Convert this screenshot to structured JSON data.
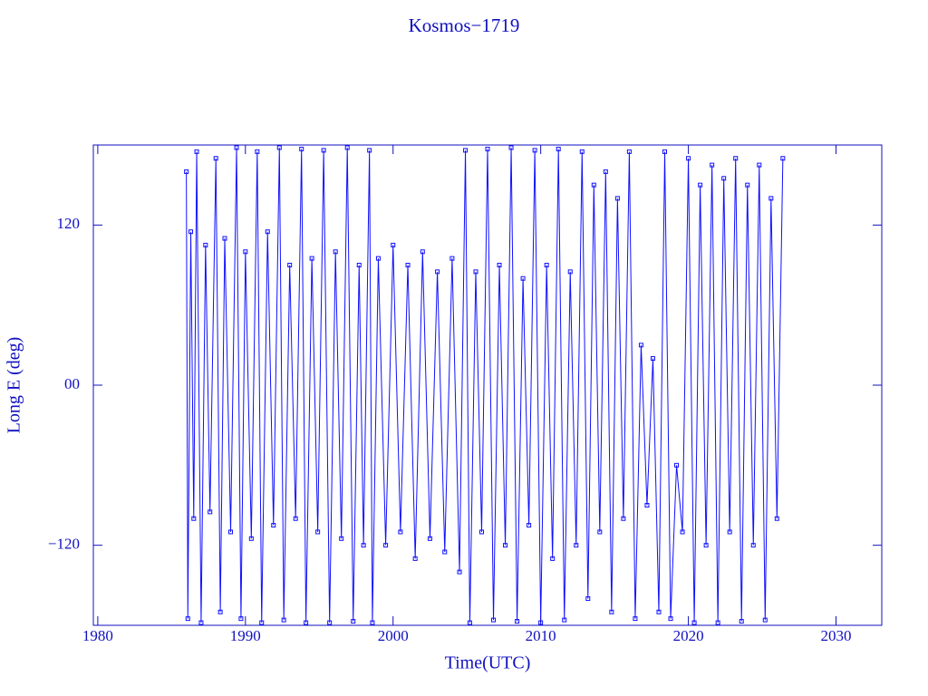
{
  "chart_data": {
    "type": "line",
    "title": "Kosmos−1719",
    "x_label": "Time(UTC)",
    "y_label": "Long E (deg)",
    "color": "#1010ff",
    "xlim": [
      1979.7,
      2033.1
    ],
    "ylim": [
      -180,
      180
    ],
    "xticks": [
      1980,
      1990,
      2000,
      2010,
      2020,
      2030
    ],
    "yticks": [
      {
        "value": -120,
        "label": "−120"
      },
      {
        "value": 0,
        "label": "00"
      },
      120
    ],
    "series": [
      {
        "name": "Kosmos−1719",
        "color": "#1010ff",
        "x": [
          1986.0,
          1986.1,
          1986.3,
          1986.5,
          1986.7,
          1987.0,
          1987.3,
          1987.6,
          1988.0,
          1988.3,
          1988.6,
          1989.0,
          1989.4,
          1989.7,
          1990.0,
          1990.4,
          1990.8,
          1991.1,
          1991.5,
          1991.9,
          1992.3,
          1992.6,
          1993.0,
          1993.4,
          1993.8,
          1994.1,
          1994.5,
          1994.9,
          1995.3,
          1995.7,
          1996.1,
          1996.5,
          1996.9,
          1997.3,
          1997.7,
          1998.0,
          1998.4,
          1998.6,
          1999.0,
          1999.5,
          2000.0,
          2000.5,
          2001.0,
          2001.5,
          2002.0,
          2002.5,
          2003.0,
          2003.5,
          2004.0,
          2004.5,
          2004.9,
          2005.2,
          2005.6,
          2006.0,
          2006.4,
          2006.8,
          2007.2,
          2007.6,
          2008.0,
          2008.4,
          2008.8,
          2009.2,
          2009.6,
          2010.0,
          2010.4,
          2010.8,
          2011.2,
          2011.6,
          2012.0,
          2012.4,
          2012.8,
          2013.2,
          2013.6,
          2014.0,
          2014.4,
          2014.8,
          2015.2,
          2015.6,
          2016.0,
          2016.4,
          2016.8,
          2017.2,
          2017.6,
          2018.0,
          2018.4,
          2018.8,
          2019.2,
          2019.6,
          2020.0,
          2020.4,
          2020.8,
          2021.2,
          2021.6,
          2022.0,
          2022.4,
          2022.8,
          2023.2,
          2023.6,
          2024.0,
          2024.4,
          2024.8,
          2025.2,
          2025.6,
          2026.0,
          2026.4
        ],
        "values": [
          160,
          -175,
          115,
          -100,
          175,
          -178,
          105,
          -95,
          170,
          -170,
          110,
          -110,
          178,
          -175,
          100,
          -115,
          175,
          -178,
          115,
          -105,
          178,
          -176,
          90,
          -100,
          177,
          -178,
          95,
          -110,
          176,
          -178,
          100,
          -115,
          178,
          -177,
          90,
          -120,
          176,
          -178,
          95,
          -120,
          105,
          -110,
          90,
          -130,
          100,
          -115,
          85,
          -125,
          95,
          -140,
          176,
          -178,
          85,
          -110,
          177,
          -176,
          90,
          -120,
          178,
          -177,
          80,
          -105,
          176,
          -178,
          90,
          -130,
          177,
          -176,
          85,
          -120,
          175,
          -160,
          150,
          -110,
          160,
          -170,
          140,
          -100,
          175,
          -175,
          30,
          -90,
          20,
          -170,
          175,
          -175,
          -60,
          -110,
          170,
          -178,
          150,
          -120,
          165,
          -178,
          155,
          -110,
          170,
          -177,
          150,
          -120,
          165,
          -176,
          140,
          -100,
          170
        ]
      }
    ]
  }
}
